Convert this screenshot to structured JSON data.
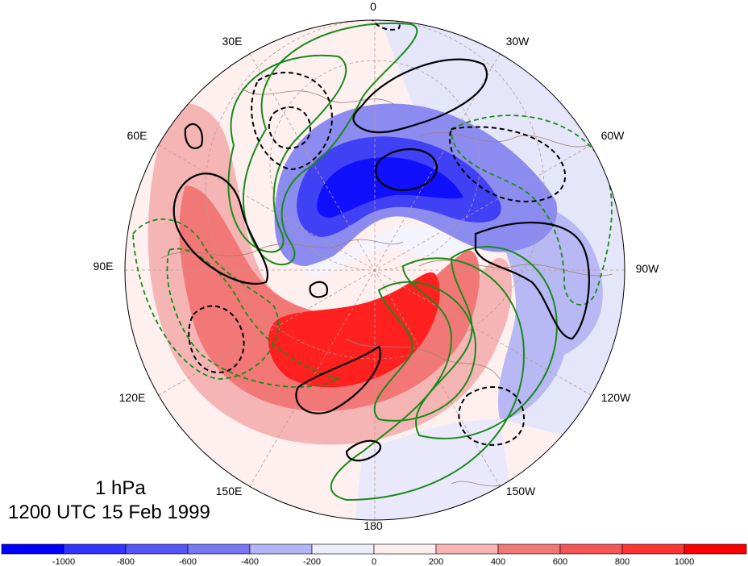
{
  "map": {
    "longitude_labels": [
      "0",
      "30W",
      "60W",
      "90W",
      "120W",
      "150W",
      "180",
      "150E",
      "120E",
      "90E",
      "60E",
      "30E"
    ],
    "projection": "north-polar-stereographic"
  },
  "title": {
    "level": "1 hPa",
    "time": "1200 UTC 15 Feb 1999"
  },
  "colorbar": {
    "tick_labels": [
      "-1000",
      "-800",
      "-600",
      "-400",
      "-200",
      "0",
      "200",
      "400",
      "600",
      "800",
      "1000"
    ],
    "colors": [
      "#0000ff",
      "#3333ff",
      "#5555f5",
      "#7777f2",
      "#b3b3f8",
      "#ececfd",
      "#fdecec",
      "#f8b3b3",
      "#f27777",
      "#f55555",
      "#ff3333",
      "#ff0000"
    ]
  },
  "legend_colors": {
    "solid_black": "#000000",
    "dashed_black": "#000000",
    "green_contours": "#1a8a1a",
    "coastlines": "#a08070"
  }
}
